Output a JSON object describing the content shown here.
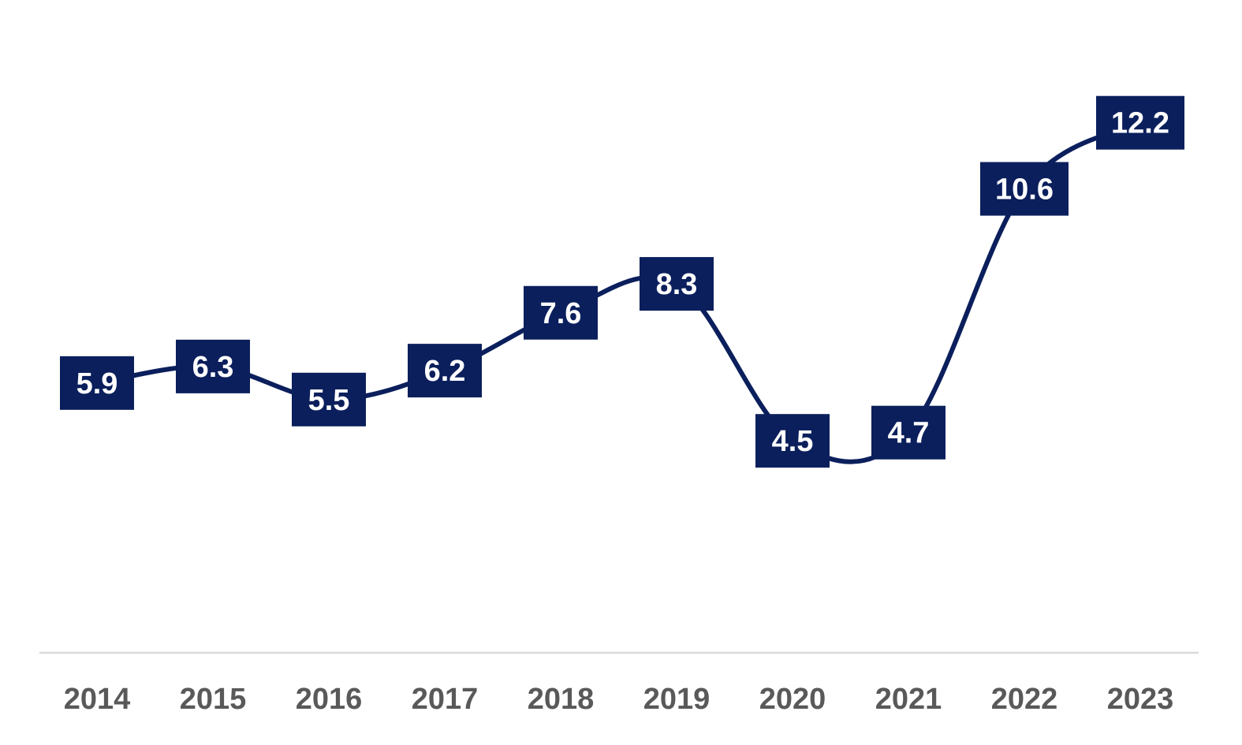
{
  "chart_data": {
    "type": "line",
    "title": "",
    "xlabel": "",
    "ylabel": "",
    "categories": [
      "2014",
      "2015",
      "2016",
      "2017",
      "2018",
      "2019",
      "2020",
      "2021",
      "2022",
      "2023"
    ],
    "series": [
      {
        "values": [
          5.9,
          6.3,
          5.5,
          6.2,
          7.6,
          8.3,
          4.5,
          4.7,
          10.6,
          12.2
        ]
      }
    ],
    "data_labels": [
      "5.9",
      "6.3",
      "5.5",
      "6.2",
      "7.6",
      "8.3",
      "4.5",
      "4.7",
      "10.6",
      "12.2"
    ],
    "line_style": "smooth",
    "grid": false,
    "legend": "none",
    "colors": {
      "line": "#0b1f5c",
      "label_box": "#0b1f5c",
      "label_text": "#ffffff",
      "tick_text": "#595959",
      "axis_line": "#d9d9d9"
    }
  }
}
